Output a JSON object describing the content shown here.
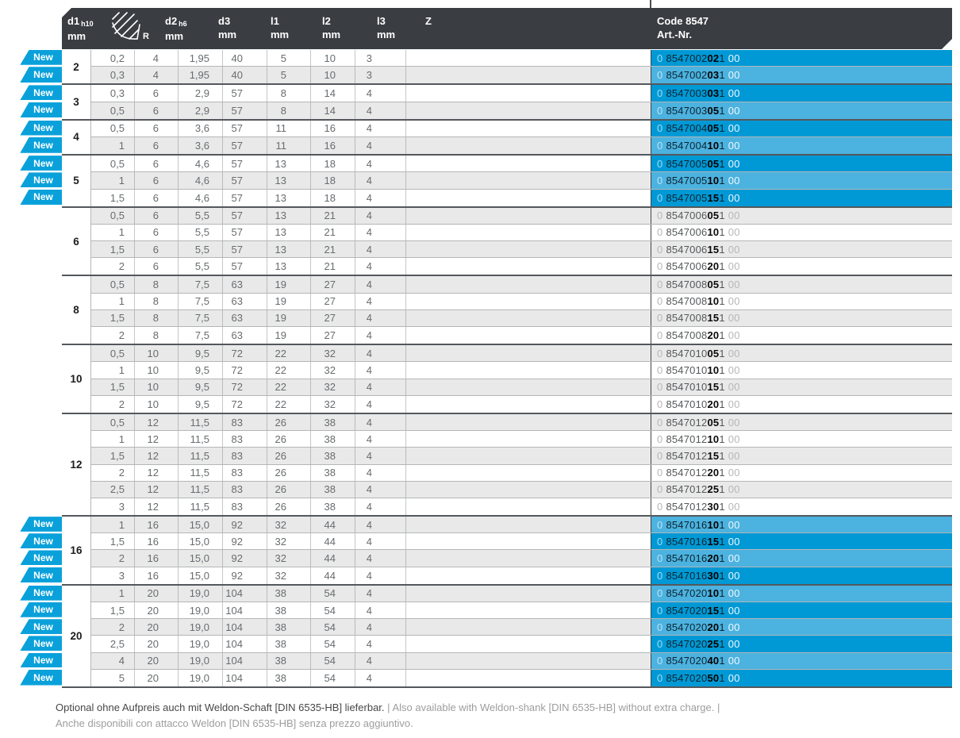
{
  "labels": {
    "new": "New"
  },
  "header": {
    "code_title": "Code 8547",
    "code_subtitle": "Art.-Nr.",
    "columns": [
      {
        "name": "d1",
        "tol": "h10",
        "unit": "mm"
      },
      {
        "name": "R",
        "icon": "corner-radius-icon"
      },
      {
        "name": "d2",
        "tol": "h6",
        "unit": "mm"
      },
      {
        "name": "d3",
        "unit": "mm"
      },
      {
        "name": "l1",
        "unit": "mm"
      },
      {
        "name": "l2",
        "unit": "mm"
      },
      {
        "name": "l3",
        "unit": "mm"
      },
      {
        "name": "Z"
      }
    ]
  },
  "groups": [
    {
      "d1": "2",
      "rows": [
        {
          "new": true,
          "r": "0,2",
          "d2": "4",
          "d3": "1,95",
          "l1": "40",
          "l2": "5",
          "l3": "10",
          "z": "3",
          "code": {
            "pre": "0",
            "main": "8547002",
            "bold": "02",
            "mid": "1",
            "suf": "00"
          }
        },
        {
          "new": true,
          "r": "0,3",
          "d2": "4",
          "d3": "1,95",
          "l1": "40",
          "l2": "5",
          "l3": "10",
          "z": "3",
          "code": {
            "pre": "0",
            "main": "8547002",
            "bold": "03",
            "mid": "1",
            "suf": "00"
          }
        }
      ]
    },
    {
      "d1": "3",
      "rows": [
        {
          "new": true,
          "r": "0,3",
          "d2": "6",
          "d3": "2,9",
          "l1": "57",
          "l2": "8",
          "l3": "14",
          "z": "4",
          "code": {
            "pre": "0",
            "main": "8547003",
            "bold": "03",
            "mid": "1",
            "suf": "00"
          }
        },
        {
          "new": true,
          "r": "0,5",
          "d2": "6",
          "d3": "2,9",
          "l1": "57",
          "l2": "8",
          "l3": "14",
          "z": "4",
          "code": {
            "pre": "0",
            "main": "8547003",
            "bold": "05",
            "mid": "1",
            "suf": "00"
          }
        }
      ]
    },
    {
      "d1": "4",
      "rows": [
        {
          "new": true,
          "r": "0,5",
          "d2": "6",
          "d3": "3,6",
          "l1": "57",
          "l2": "11",
          "l3": "16",
          "z": "4",
          "code": {
            "pre": "0",
            "main": "8547004",
            "bold": "05",
            "mid": "1",
            "suf": "00"
          }
        },
        {
          "new": true,
          "r": "1",
          "d2": "6",
          "d3": "3,6",
          "l1": "57",
          "l2": "11",
          "l3": "16",
          "z": "4",
          "code": {
            "pre": "0",
            "main": "8547004",
            "bold": "10",
            "mid": "1",
            "suf": "00"
          }
        }
      ]
    },
    {
      "d1": "5",
      "rows": [
        {
          "new": true,
          "r": "0,5",
          "d2": "6",
          "d3": "4,6",
          "l1": "57",
          "l2": "13",
          "l3": "18",
          "z": "4",
          "code": {
            "pre": "0",
            "main": "8547005",
            "bold": "05",
            "mid": "1",
            "suf": "00"
          }
        },
        {
          "new": true,
          "r": "1",
          "d2": "6",
          "d3": "4,6",
          "l1": "57",
          "l2": "13",
          "l3": "18",
          "z": "4",
          "code": {
            "pre": "0",
            "main": "8547005",
            "bold": "10",
            "mid": "1",
            "suf": "00"
          }
        },
        {
          "new": true,
          "r": "1,5",
          "d2": "6",
          "d3": "4,6",
          "l1": "57",
          "l2": "13",
          "l3": "18",
          "z": "4",
          "code": {
            "pre": "0",
            "main": "8547005",
            "bold": "15",
            "mid": "1",
            "suf": "00"
          }
        }
      ]
    },
    {
      "d1": "6",
      "rows": [
        {
          "new": false,
          "r": "0,5",
          "d2": "6",
          "d3": "5,5",
          "l1": "57",
          "l2": "13",
          "l3": "21",
          "z": "4",
          "code": {
            "pre": "0",
            "main": "8547006",
            "bold": "05",
            "mid": "1",
            "suf": "00"
          }
        },
        {
          "new": false,
          "r": "1",
          "d2": "6",
          "d3": "5,5",
          "l1": "57",
          "l2": "13",
          "l3": "21",
          "z": "4",
          "code": {
            "pre": "0",
            "main": "8547006",
            "bold": "10",
            "mid": "1",
            "suf": "00"
          }
        },
        {
          "new": false,
          "r": "1,5",
          "d2": "6",
          "d3": "5,5",
          "l1": "57",
          "l2": "13",
          "l3": "21",
          "z": "4",
          "code": {
            "pre": "0",
            "main": "8547006",
            "bold": "15",
            "mid": "1",
            "suf": "00"
          }
        },
        {
          "new": false,
          "r": "2",
          "d2": "6",
          "d3": "5,5",
          "l1": "57",
          "l2": "13",
          "l3": "21",
          "z": "4",
          "code": {
            "pre": "0",
            "main": "8547006",
            "bold": "20",
            "mid": "1",
            "suf": "00"
          }
        }
      ]
    },
    {
      "d1": "8",
      "rows": [
        {
          "new": false,
          "r": "0,5",
          "d2": "8",
          "d3": "7,5",
          "l1": "63",
          "l2": "19",
          "l3": "27",
          "z": "4",
          "code": {
            "pre": "0",
            "main": "8547008",
            "bold": "05",
            "mid": "1",
            "suf": "00"
          }
        },
        {
          "new": false,
          "r": "1",
          "d2": "8",
          "d3": "7,5",
          "l1": "63",
          "l2": "19",
          "l3": "27",
          "z": "4",
          "code": {
            "pre": "0",
            "main": "8547008",
            "bold": "10",
            "mid": "1",
            "suf": "00"
          }
        },
        {
          "new": false,
          "r": "1,5",
          "d2": "8",
          "d3": "7,5",
          "l1": "63",
          "l2": "19",
          "l3": "27",
          "z": "4",
          "code": {
            "pre": "0",
            "main": "8547008",
            "bold": "15",
            "mid": "1",
            "suf": "00"
          }
        },
        {
          "new": false,
          "r": "2",
          "d2": "8",
          "d3": "7,5",
          "l1": "63",
          "l2": "19",
          "l3": "27",
          "z": "4",
          "code": {
            "pre": "0",
            "main": "8547008",
            "bold": "20",
            "mid": "1",
            "suf": "00"
          }
        }
      ]
    },
    {
      "d1": "10",
      "rows": [
        {
          "new": false,
          "r": "0,5",
          "d2": "10",
          "d3": "9,5",
          "l1": "72",
          "l2": "22",
          "l3": "32",
          "z": "4",
          "code": {
            "pre": "0",
            "main": "8547010",
            "bold": "05",
            "mid": "1",
            "suf": "00"
          }
        },
        {
          "new": false,
          "r": "1",
          "d2": "10",
          "d3": "9,5",
          "l1": "72",
          "l2": "22",
          "l3": "32",
          "z": "4",
          "code": {
            "pre": "0",
            "main": "8547010",
            "bold": "10",
            "mid": "1",
            "suf": "00"
          }
        },
        {
          "new": false,
          "r": "1,5",
          "d2": "10",
          "d3": "9,5",
          "l1": "72",
          "l2": "22",
          "l3": "32",
          "z": "4",
          "code": {
            "pre": "0",
            "main": "8547010",
            "bold": "15",
            "mid": "1",
            "suf": "00"
          }
        },
        {
          "new": false,
          "r": "2",
          "d2": "10",
          "d3": "9,5",
          "l1": "72",
          "l2": "22",
          "l3": "32",
          "z": "4",
          "code": {
            "pre": "0",
            "main": "8547010",
            "bold": "20",
            "mid": "1",
            "suf": "00"
          }
        }
      ]
    },
    {
      "d1": "12",
      "rows": [
        {
          "new": false,
          "r": "0,5",
          "d2": "12",
          "d3": "11,5",
          "l1": "83",
          "l2": "26",
          "l3": "38",
          "z": "4",
          "code": {
            "pre": "0",
            "main": "8547012",
            "bold": "05",
            "mid": "1",
            "suf": "00"
          }
        },
        {
          "new": false,
          "r": "1",
          "d2": "12",
          "d3": "11,5",
          "l1": "83",
          "l2": "26",
          "l3": "38",
          "z": "4",
          "code": {
            "pre": "0",
            "main": "8547012",
            "bold": "10",
            "mid": "1",
            "suf": "00"
          }
        },
        {
          "new": false,
          "r": "1,5",
          "d2": "12",
          "d3": "11,5",
          "l1": "83",
          "l2": "26",
          "l3": "38",
          "z": "4",
          "code": {
            "pre": "0",
            "main": "8547012",
            "bold": "15",
            "mid": "1",
            "suf": "00"
          }
        },
        {
          "new": false,
          "r": "2",
          "d2": "12",
          "d3": "11,5",
          "l1": "83",
          "l2": "26",
          "l3": "38",
          "z": "4",
          "code": {
            "pre": "0",
            "main": "8547012",
            "bold": "20",
            "mid": "1",
            "suf": "00"
          }
        },
        {
          "new": false,
          "r": "2,5",
          "d2": "12",
          "d3": "11,5",
          "l1": "83",
          "l2": "26",
          "l3": "38",
          "z": "4",
          "code": {
            "pre": "0",
            "main": "8547012",
            "bold": "25",
            "mid": "1",
            "suf": "00"
          }
        },
        {
          "new": false,
          "r": "3",
          "d2": "12",
          "d3": "11,5",
          "l1": "83",
          "l2": "26",
          "l3": "38",
          "z": "4",
          "code": {
            "pre": "0",
            "main": "8547012",
            "bold": "30",
            "mid": "1",
            "suf": "00"
          }
        }
      ]
    },
    {
      "d1": "16",
      "rows": [
        {
          "new": true,
          "r": "1",
          "d2": "16",
          "d3": "15,0",
          "l1": "92",
          "l2": "32",
          "l3": "44",
          "z": "4",
          "code": {
            "pre": "0",
            "main": "8547016",
            "bold": "10",
            "mid": "1",
            "suf": "00"
          }
        },
        {
          "new": true,
          "r": "1,5",
          "d2": "16",
          "d3": "15,0",
          "l1": "92",
          "l2": "32",
          "l3": "44",
          "z": "4",
          "code": {
            "pre": "0",
            "main": "8547016",
            "bold": "15",
            "mid": "1",
            "suf": "00"
          }
        },
        {
          "new": true,
          "r": "2",
          "d2": "16",
          "d3": "15,0",
          "l1": "92",
          "l2": "32",
          "l3": "44",
          "z": "4",
          "code": {
            "pre": "0",
            "main": "8547016",
            "bold": "20",
            "mid": "1",
            "suf": "00"
          }
        },
        {
          "new": true,
          "r": "3",
          "d2": "16",
          "d3": "15,0",
          "l1": "92",
          "l2": "32",
          "l3": "44",
          "z": "4",
          "code": {
            "pre": "0",
            "main": "8547016",
            "bold": "30",
            "mid": "1",
            "suf": "00"
          }
        }
      ]
    },
    {
      "d1": "20",
      "rows": [
        {
          "new": true,
          "r": "1",
          "d2": "20",
          "d3": "19,0",
          "l1": "104",
          "l2": "38",
          "l3": "54",
          "z": "4",
          "code": {
            "pre": "0",
            "main": "8547020",
            "bold": "10",
            "mid": "1",
            "suf": "00"
          }
        },
        {
          "new": true,
          "r": "1,5",
          "d2": "20",
          "d3": "19,0",
          "l1": "104",
          "l2": "38",
          "l3": "54",
          "z": "4",
          "code": {
            "pre": "0",
            "main": "8547020",
            "bold": "15",
            "mid": "1",
            "suf": "00"
          }
        },
        {
          "new": true,
          "r": "2",
          "d2": "20",
          "d3": "19,0",
          "l1": "104",
          "l2": "38",
          "l3": "54",
          "z": "4",
          "code": {
            "pre": "0",
            "main": "8547020",
            "bold": "20",
            "mid": "1",
            "suf": "00"
          }
        },
        {
          "new": true,
          "r": "2,5",
          "d2": "20",
          "d3": "19,0",
          "l1": "104",
          "l2": "38",
          "l3": "54",
          "z": "4",
          "code": {
            "pre": "0",
            "main": "8547020",
            "bold": "25",
            "mid": "1",
            "suf": "00"
          }
        },
        {
          "new": true,
          "r": "4",
          "d2": "20",
          "d3": "19,0",
          "l1": "104",
          "l2": "38",
          "l3": "54",
          "z": "4",
          "code": {
            "pre": "0",
            "main": "8547020",
            "bold": "40",
            "mid": "1",
            "suf": "00"
          }
        },
        {
          "new": true,
          "r": "5",
          "d2": "20",
          "d3": "19,0",
          "l1": "104",
          "l2": "38",
          "l3": "54",
          "z": "4",
          "code": {
            "pre": "0",
            "main": "8547020",
            "bold": "50",
            "mid": "1",
            "suf": "00"
          }
        }
      ]
    }
  ],
  "footer": {
    "de": "Optional ohne Aufpreis auch mit Weldon-Schaft [DIN 6535-HB] lieferbar.",
    "sep": "|",
    "en": "Also available with Weldon-shank [DIN 6535-HB] without extra charge.",
    "en_trail": "|",
    "it": "Anche disponibili con attacco Weldon [DIN 6535-HB] senza prezzo aggiuntivo."
  },
  "colors": {
    "header_bg": "#3a3e43",
    "accent_dark": "#0099d5",
    "accent_light": "#4cb2df",
    "badge": "#0aa1db",
    "stripe": "#e9e9e9",
    "row_border": "#b3b6b8",
    "group_border": "#54585c"
  }
}
